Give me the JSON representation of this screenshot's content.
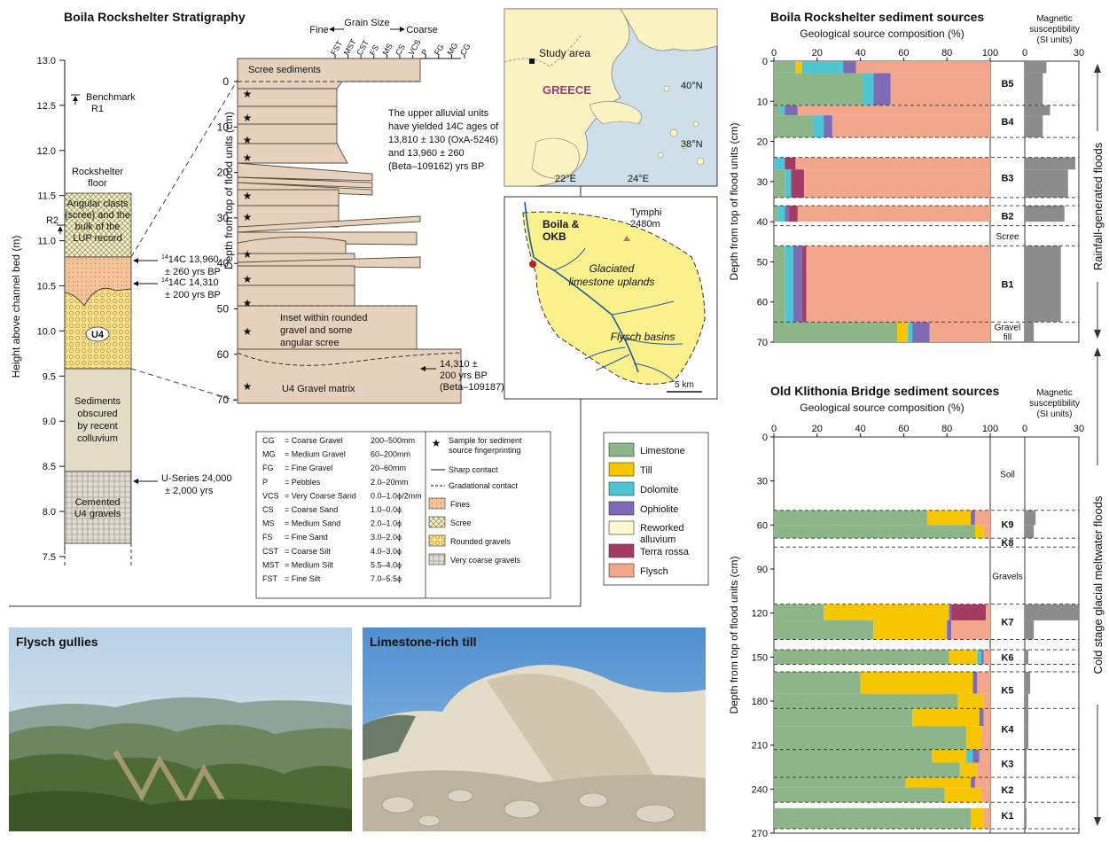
{
  "stratigraphy": {
    "title": "Boila Rockshelter Stratigraphy",
    "y_label": "Height above channel bed (m)",
    "ticks": [
      "13.0",
      "12.5",
      "12.0",
      "11.5",
      "11.0",
      "10.5",
      "10.0",
      "9.5",
      "9.0",
      "8.5",
      "8.0",
      "7.5"
    ],
    "benchmark": "Benchmark",
    "benchmark_id": "R1",
    "r2": "R2",
    "floor_label": [
      "Rockshelter",
      "floor"
    ],
    "unit_scree": [
      "Angular clasts",
      "(scree) and the",
      "bulk of the",
      "LUP record"
    ],
    "unit_u4": "U4",
    "unit_obscured": [
      "Sediments",
      "obscured",
      "by recent",
      "colluvium"
    ],
    "unit_cemented": [
      "Cemented",
      "U4 gravels"
    ],
    "date1": [
      "14C 13,960",
      "± 260 yrs BP"
    ],
    "date2": [
      "14C 14,310",
      "± 200 yrs BP"
    ],
    "date3": [
      "U-Series 24,000",
      "± 2,000 yrs"
    ]
  },
  "log": {
    "grain_title": "Grain Size",
    "fine": "Fine",
    "coarse": "Coarse",
    "codes": [
      "FST",
      "MST",
      "CST",
      "FS",
      "MS",
      "CS",
      "VCS",
      "P",
      "FG",
      "MG",
      "CG"
    ],
    "y_label": "Depth from top of flood units (cm)",
    "ticks": [
      "0",
      "10",
      "20",
      "30",
      "40",
      "50",
      "60",
      "70"
    ],
    "scree_label": "Scree sediments",
    "ages_note": [
      "The upper alluvial units",
      "have yielded 14C ages of",
      "13,810 ± 130 (OxA-5246)",
      "and 13,960 ± 260",
      "(Beta–109162) yrs BP"
    ],
    "age2": [
      "14,310 ±",
      "200 yrs BP",
      "(Beta–109187)"
    ],
    "inset_label": [
      "Inset within rounded",
      "gravel and some",
      "angular scree"
    ],
    "gravel_label": "U4 Gravel matrix"
  },
  "legend_grain": {
    "rows": [
      {
        "code": "CG",
        "name": "= Coarse Gravel",
        "range": "200–500mm"
      },
      {
        "code": "MG",
        "name": "= Medium Gravel",
        "range": "60–200mm"
      },
      {
        "code": "FG",
        "name": "= Fine Gravel",
        "range": "20–60mm"
      },
      {
        "code": "P",
        "name": "= Pebbles",
        "range": "2.0–20mm"
      },
      {
        "code": "VCS",
        "name": "= Very Coarse Sand",
        "range": "0.0–1.0ϕ/2mm"
      },
      {
        "code": "CS",
        "name": "= Coarse Sand",
        "range": "1.0–0.0ϕ"
      },
      {
        "code": "MS",
        "name": "= Medium Sand",
        "range": "2.0–1.0ϕ"
      },
      {
        "code": "FS",
        "name": "= Fine Sand",
        "range": "3.0–2.0ϕ"
      },
      {
        "code": "CST",
        "name": "= Coarse Silt",
        "range": "4.0–3.0ϕ"
      },
      {
        "code": "MST",
        "name": "= Medium Silt",
        "range": "5.5–4.0ϕ"
      },
      {
        "code": "FST",
        "name": "= Fine Silt",
        "range": "7.0–5.5ϕ"
      }
    ],
    "sample": [
      "Sample for sediment",
      "source fingerprinting"
    ],
    "sharp": "Sharp contact",
    "gradational": "Gradational contact",
    "fills": [
      "Fines",
      "Scree",
      "Rounded gravels",
      "Very coarse gravels"
    ]
  },
  "map_greece": {
    "study_area": "Study area",
    "country": "GREECE",
    "lat_top": "40°N",
    "lat_bottom": "38°N",
    "lon_left": "22°E",
    "lon_right": "24°E"
  },
  "map_catchment": {
    "site": [
      "Boila &",
      "OKB"
    ],
    "peak": [
      "Tymphi",
      "2480m"
    ],
    "uplands": [
      "Glaciated",
      "limestone uplands"
    ],
    "basins": "Flysch basins",
    "scale": "5 km"
  },
  "source_legend": [
    {
      "label": "Limestone",
      "color": "#8db58a"
    },
    {
      "label": "Till",
      "color": "#f6c600"
    },
    {
      "label": "Dolomite",
      "color": "#4ec5d2"
    },
    {
      "label": "Ophiolite",
      "color": "#7f6bb5"
    },
    {
      "label": "Reworked alluvium",
      "color": "#fdf8d2"
    },
    {
      "label": "Terra rossa",
      "color": "#a43b63"
    },
    {
      "label": "Flysch",
      "color": "#f2a68c"
    }
  ],
  "photos": {
    "left": "Flysch gullies",
    "right": "Limestone-rich till"
  },
  "chart_data": [
    {
      "type": "bar",
      "orientation": "horizontal-stacked",
      "title": "Boila Rockshelter sediment sources",
      "xlabel": "Geological source composition (%)",
      "ylabel": "Depth from top of flood units (cm)",
      "xlim": [
        0,
        100
      ],
      "ylim": [
        0,
        70
      ],
      "x_ticks": [
        "0",
        "20",
        "40",
        "60",
        "80",
        "100"
      ],
      "y_ticks": [
        "0",
        "10",
        "20",
        "30",
        "40",
        "50",
        "60",
        "70"
      ],
      "mag_label": [
        "Magnetic",
        "susceptibility",
        "(SI units)"
      ],
      "mag_ticks": [
        "0",
        "30"
      ],
      "side_label": "Rainfall-generated floods",
      "units": [
        {
          "label": "B5",
          "top": 0,
          "bottom": 11
        },
        {
          "label": "B4",
          "top": 11,
          "bottom": 19
        },
        {
          "label": "B3",
          "top": 24,
          "bottom": 34
        },
        {
          "label": "B2",
          "top": 36,
          "bottom": 41
        },
        {
          "label": "Scree",
          "top": 41,
          "bottom": 46
        },
        {
          "label": "B1",
          "top": 46,
          "bottom": 65
        },
        {
          "label": "Gravel fill",
          "top": 65,
          "bottom": 70
        }
      ],
      "series_order": [
        "Limestone",
        "Till",
        "Dolomite",
        "Ophiolite",
        "Reworked alluvium",
        "Terra rossa",
        "Flysch"
      ],
      "bars": [
        {
          "top": 0,
          "bottom": 3,
          "values": [
            10,
            3,
            19,
            6,
            0,
            0,
            62
          ],
          "mag": 12
        },
        {
          "top": 3,
          "bottom": 11,
          "values": [
            41,
            0,
            5,
            8,
            0,
            0,
            46
          ],
          "mag": 10
        },
        {
          "top": 11,
          "bottom": 13.5,
          "values": [
            3,
            0,
            2,
            6,
            0,
            0,
            89
          ],
          "mag": 14
        },
        {
          "top": 13.5,
          "bottom": 19,
          "values": [
            18,
            0,
            5,
            4,
            0,
            0,
            73
          ],
          "mag": 10
        },
        {
          "top": 24,
          "bottom": 27,
          "values": [
            0,
            0,
            5,
            0,
            0,
            5,
            90
          ],
          "mag": 28
        },
        {
          "top": 27,
          "bottom": 34,
          "values": [
            5,
            0,
            3,
            0,
            0,
            6,
            86
          ],
          "mag": 24
        },
        {
          "top": 36,
          "bottom": 40,
          "values": [
            2,
            0,
            3,
            2,
            0,
            4,
            89
          ],
          "mag": 22
        },
        {
          "top": 46,
          "bottom": 65,
          "values": [
            5,
            0,
            4,
            4,
            0,
            2,
            85
          ],
          "mag": 20
        },
        {
          "top": 65,
          "bottom": 70,
          "values": [
            57,
            5,
            2,
            8,
            0,
            0,
            28
          ],
          "mag": 5
        }
      ]
    },
    {
      "type": "bar",
      "orientation": "horizontal-stacked",
      "title": "Old Klithonia Bridge sediment sources",
      "xlabel": "Geological source composition (%)",
      "ylabel": "Depth from top of flood units (cm)",
      "xlim": [
        0,
        100
      ],
      "ylim": [
        0,
        270
      ],
      "x_ticks": [
        "0",
        "20",
        "40",
        "60",
        "80",
        "100"
      ],
      "y_ticks": [
        "0",
        "30",
        "60",
        "90",
        "120",
        "150",
        "180",
        "210",
        "240",
        "270"
      ],
      "mag_label": [
        "Magnetic",
        "susceptibility",
        "(SI units)"
      ],
      "mag_ticks": [
        "0",
        "30"
      ],
      "side_label": "Cold stage glacial meltwater floods",
      "units": [
        {
          "label": "Soil",
          "top": 0,
          "bottom": 50
        },
        {
          "label": "K9",
          "top": 50,
          "bottom": 69
        },
        {
          "label": "K8",
          "top": 69,
          "bottom": 75
        },
        {
          "label": "Gravels",
          "top": 75,
          "bottom": 114
        },
        {
          "label": "K7",
          "top": 114,
          "bottom": 138
        },
        {
          "label": "K6",
          "top": 145,
          "bottom": 155
        },
        {
          "label": "K5",
          "top": 160,
          "bottom": 185
        },
        {
          "label": "K4",
          "top": 185,
          "bottom": 213
        },
        {
          "label": "K3",
          "top": 213,
          "bottom": 232
        },
        {
          "label": "K2",
          "top": 232,
          "bottom": 249
        },
        {
          "label": "K1",
          "top": 249,
          "bottom": 267
        }
      ],
      "series_order": [
        "Limestone",
        "Till",
        "Dolomite",
        "Ophiolite",
        "Reworked alluvium",
        "Terra rossa",
        "Flysch"
      ],
      "bars": [
        {
          "top": 50,
          "bottom": 60,
          "values": [
            71,
            20,
            0,
            2,
            0,
            0,
            7
          ],
          "mag": 6
        },
        {
          "top": 60,
          "bottom": 69,
          "values": [
            93,
            4,
            0,
            0,
            0,
            0,
            3
          ],
          "mag": 5
        },
        {
          "top": 114,
          "bottom": 125,
          "values": [
            23,
            58,
            0,
            1,
            0,
            16,
            2
          ],
          "mag": 30
        },
        {
          "top": 125,
          "bottom": 138,
          "values": [
            46,
            34,
            0,
            2,
            0,
            0,
            18
          ],
          "mag": 5
        },
        {
          "top": 145,
          "bottom": 155,
          "values": [
            81,
            13,
            2,
            1,
            0,
            0,
            3
          ],
          "mag": 2
        },
        {
          "top": 160,
          "bottom": 175,
          "values": [
            40,
            52,
            0,
            2,
            0,
            0,
            6
          ],
          "mag": 3
        },
        {
          "top": 175,
          "bottom": 185,
          "values": [
            85,
            12,
            0,
            0,
            0,
            0,
            3
          ],
          "mag": 2
        },
        {
          "top": 185,
          "bottom": 197,
          "values": [
            64,
            31,
            0,
            2,
            0,
            0,
            3
          ],
          "mag": 2
        },
        {
          "top": 197,
          "bottom": 213,
          "values": [
            89,
            7,
            0,
            0,
            0,
            0,
            4
          ],
          "mag": 2
        },
        {
          "top": 213,
          "bottom": 222,
          "values": [
            73,
            16,
            3,
            3,
            0,
            0,
            5
          ],
          "mag": 1
        },
        {
          "top": 222,
          "bottom": 232,
          "values": [
            86,
            8,
            0,
            0,
            0,
            0,
            6
          ],
          "mag": 1
        },
        {
          "top": 232,
          "bottom": 239,
          "values": [
            61,
            30,
            0,
            2,
            0,
            0,
            7
          ],
          "mag": 1
        },
        {
          "top": 239,
          "bottom": 249,
          "values": [
            79,
            17,
            0,
            0,
            0,
            0,
            4
          ],
          "mag": 1
        },
        {
          "top": 253,
          "bottom": 267,
          "values": [
            91,
            6,
            0,
            0,
            0,
            0,
            3
          ],
          "mag": 1
        }
      ]
    }
  ]
}
